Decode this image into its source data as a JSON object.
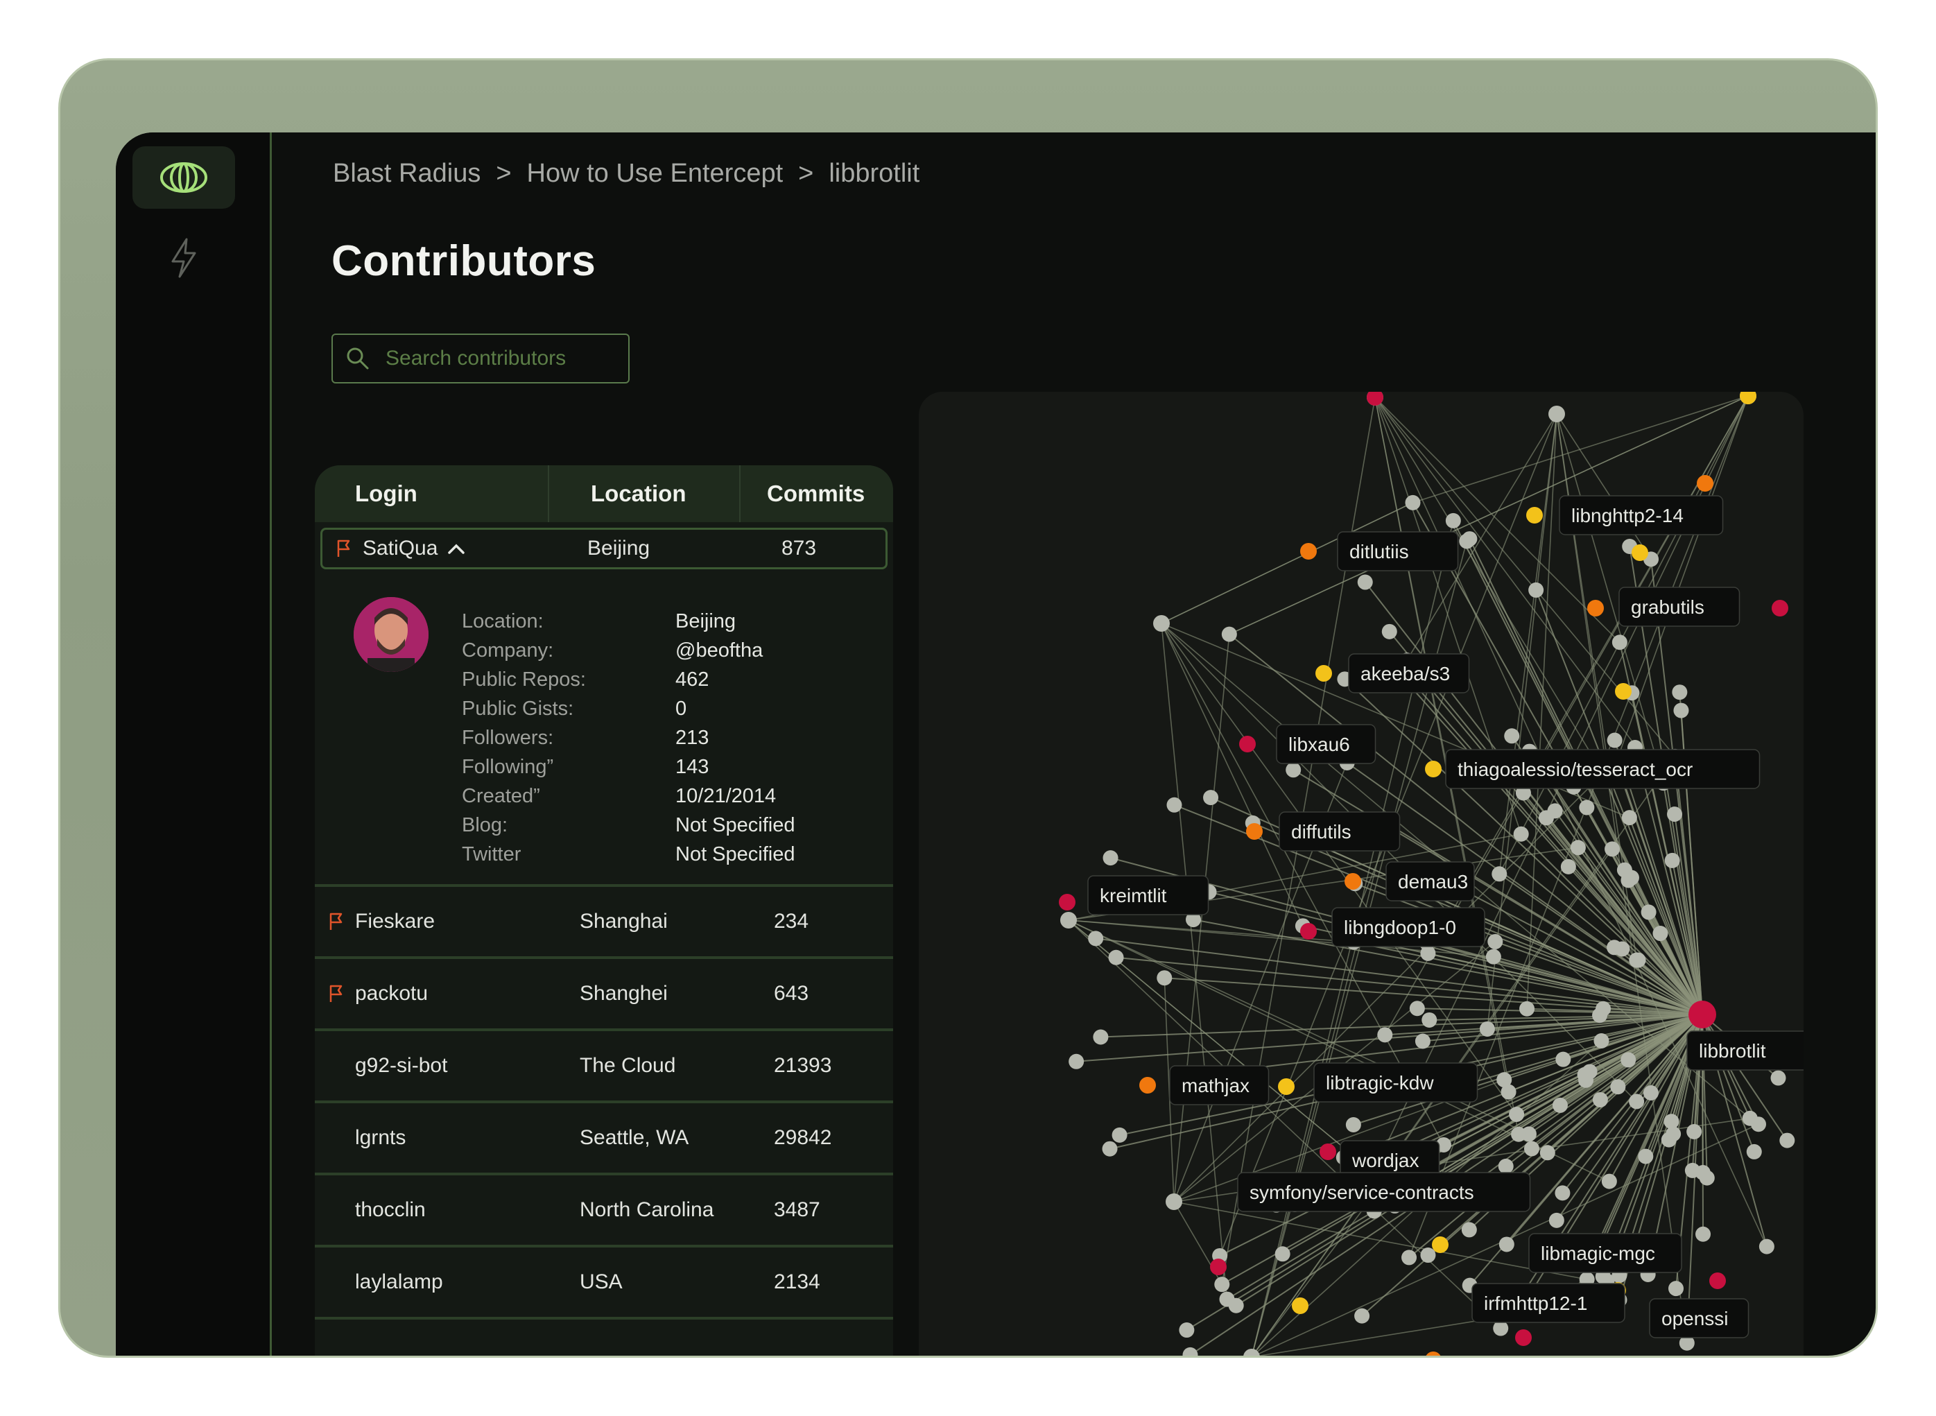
{
  "breadcrumbs": [
    "Blast Radius",
    "How to Use Entercept",
    "libbrotlit"
  ],
  "breadcrumb_separator": ">",
  "page_title": "Contributors",
  "search": {
    "placeholder": "Search contributors"
  },
  "table": {
    "headers": {
      "login": "Login",
      "location": "Location",
      "commits": "Commits"
    },
    "selected": {
      "login": "SatiQua",
      "location": "Beijing",
      "commits": "873",
      "flagged": true,
      "details": {
        "labels": [
          "Location:",
          "Company:",
          "Public Repos:",
          "Public Gists:",
          "Followers:",
          "Following”",
          "Created”",
          "Blog:",
          "Twitter"
        ],
        "values": [
          "Beijing",
          "@beoftha",
          "462",
          "0",
          "213",
          "143",
          "10/21/2014",
          "Not Specified",
          "Not Specified"
        ]
      }
    },
    "rows": [
      {
        "login": "Fieskare",
        "location": "Shanghai",
        "commits": "234",
        "flagged": true
      },
      {
        "login": "packotu",
        "location": "Shanghei",
        "commits": "643",
        "flagged": true
      },
      {
        "login": "g92-si-bot",
        "location": "The Cloud",
        "commits": "21393",
        "flagged": false
      },
      {
        "login": "lgrnts",
        "location": "Seattle, WA",
        "commits": "29842",
        "flagged": false
      },
      {
        "login": "thocclin",
        "location": "North Carolina",
        "commits": "3487",
        "flagged": false
      },
      {
        "login": "laylalamp",
        "location": "USA",
        "commits": "2134",
        "flagged": false
      }
    ]
  },
  "graph": {
    "center_label": "libbrotlit",
    "labels": [
      "libnghttp2-14",
      "ditlutiis",
      "grabutils",
      "akeeba/s3",
      "libbrotlit",
      "libxau6",
      "thiagoalessio/tesseract_ocr",
      "diffutils",
      "demau3",
      "kreimtlit",
      "libngdoop1-0",
      "mathjax",
      "libtragic-kdw",
      "wordjax",
      "symfony/service-contracts",
      "libmagic-mgc",
      "irfmhttp12-1",
      "openssi"
    ]
  },
  "colors": {
    "accent": "#a6e07a",
    "flag": "#e0542a",
    "crimson": "#c8103f",
    "orange": "#f0780e",
    "yellow": "#f3c21a",
    "gray_node": "#b5b8ae"
  },
  "icons": {
    "logo": "eye-logo-icon",
    "nav": "bolt-icon",
    "search": "search-icon",
    "flag": "flag-icon",
    "caret": "chevron-up-icon"
  }
}
